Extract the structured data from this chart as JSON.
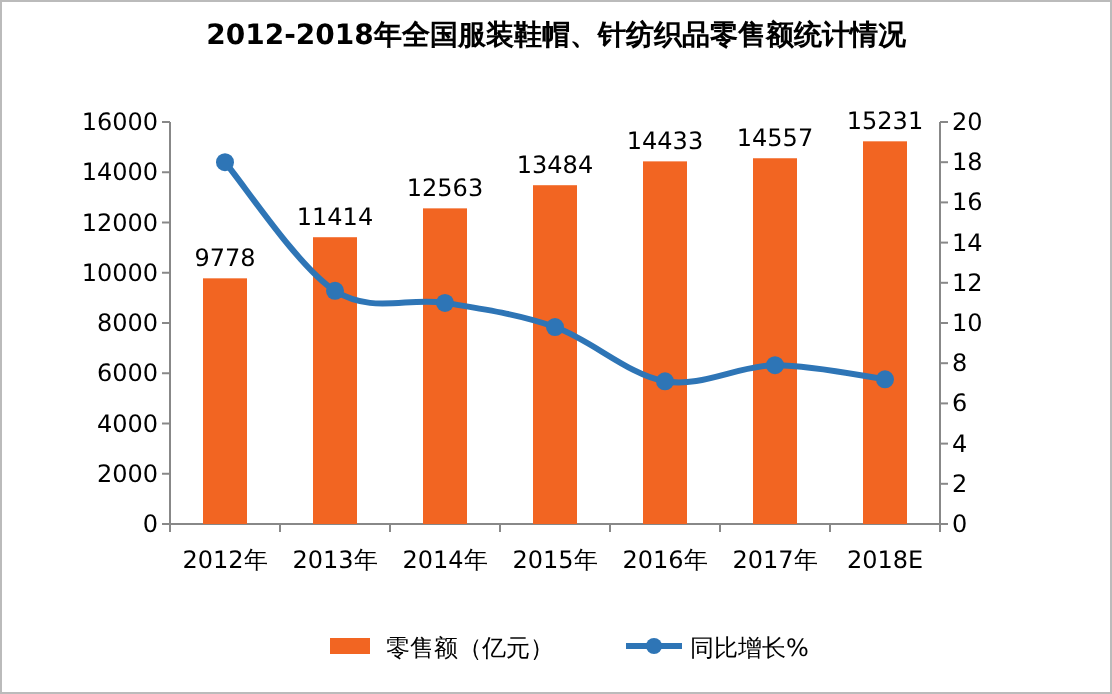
{
  "chart_data": {
    "type": "bar",
    "title": "2012-2018年全国服装鞋帽、针纺织品零售额统计情况",
    "categories": [
      "2012年",
      "2013年",
      "2014年",
      "2015年",
      "2016年",
      "2017年",
      "2018E"
    ],
    "series": [
      {
        "name": "零售额（亿元）",
        "color": "#f26522",
        "values": [
          9778,
          11414,
          12563,
          13484,
          14433,
          14557,
          15231
        ],
        "value_labels": [
          "9778",
          "11414",
          "12563",
          "13484",
          "14433",
          "14557",
          "15231"
        ]
      },
      {
        "name": "同比增长%",
        "type": "line",
        "axis": "y2",
        "color": "#2e75b6",
        "marker": "circle",
        "values": [
          18.0,
          11.6,
          11.0,
          9.8,
          7.1,
          7.9,
          7.2
        ]
      }
    ],
    "ylim": [
      0,
      16000
    ],
    "yticks": [
      0,
      2000,
      4000,
      6000,
      8000,
      10000,
      12000,
      14000,
      16000
    ],
    "y2lim": [
      0,
      20
    ],
    "y2ticks": [
      0,
      2,
      4,
      6,
      8,
      10,
      12,
      14,
      16,
      18,
      20
    ],
    "legend": "bottom",
    "grid": false
  }
}
